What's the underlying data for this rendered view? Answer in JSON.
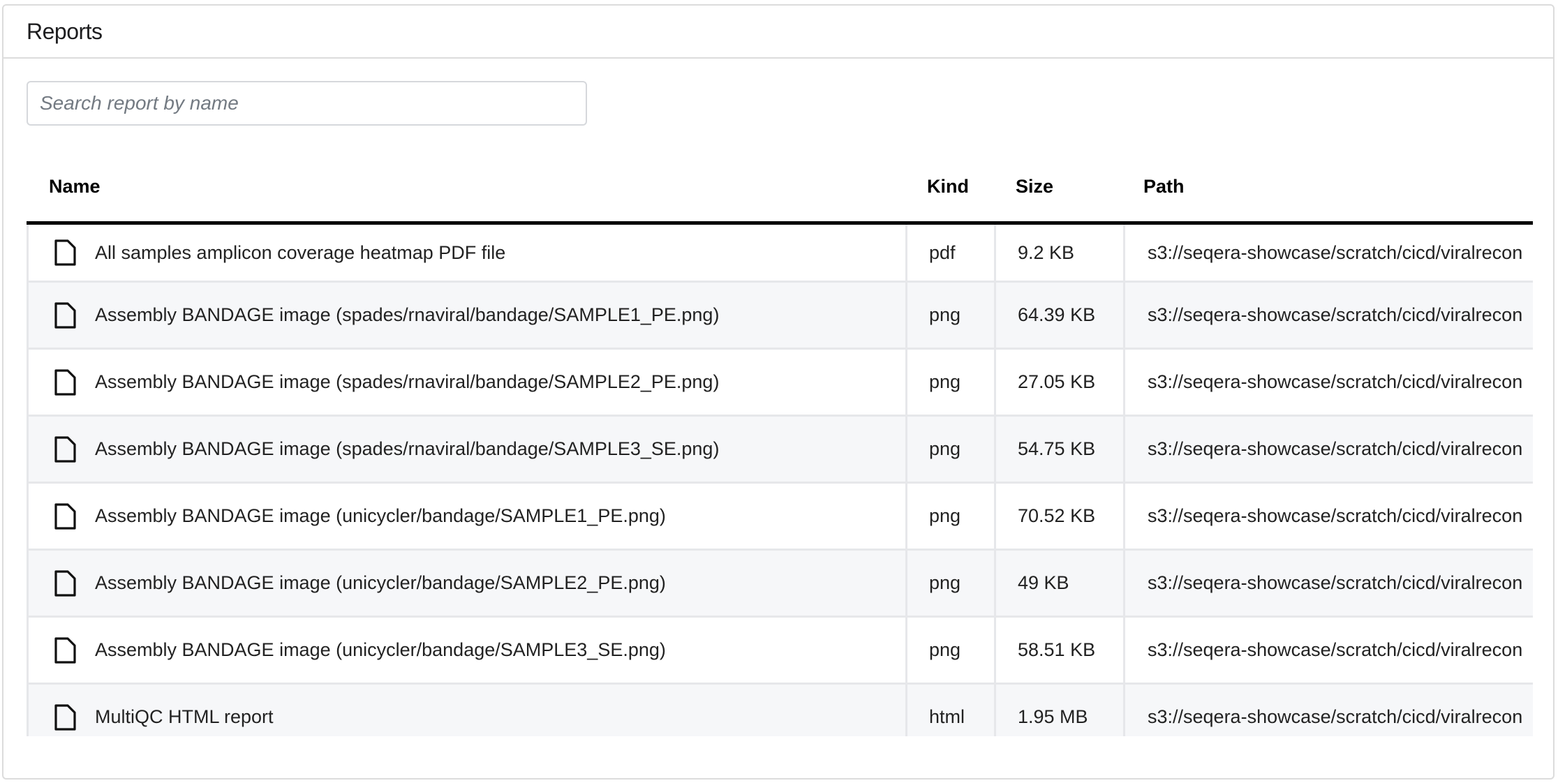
{
  "panel": {
    "title": "Reports"
  },
  "search": {
    "placeholder": "Search report by name",
    "value": ""
  },
  "table": {
    "columns": [
      "Name",
      "Kind",
      "Size",
      "Path"
    ],
    "rows": [
      {
        "icon": "file-icon",
        "name": "All samples amplicon coverage heatmap PDF file",
        "kind": "pdf",
        "size": "9.2 KB",
        "path": "s3://seqera-showcase/scratch/cicd/viralrecon"
      },
      {
        "icon": "file-icon",
        "name": "Assembly BANDAGE image (spades/rnaviral/bandage/SAMPLE1_PE.png)",
        "kind": "png",
        "size": "64.39 KB",
        "path": "s3://seqera-showcase/scratch/cicd/viralrecon"
      },
      {
        "icon": "file-icon",
        "name": "Assembly BANDAGE image (spades/rnaviral/bandage/SAMPLE2_PE.png)",
        "kind": "png",
        "size": "27.05 KB",
        "path": "s3://seqera-showcase/scratch/cicd/viralrecon"
      },
      {
        "icon": "file-icon",
        "name": "Assembly BANDAGE image (spades/rnaviral/bandage/SAMPLE3_SE.png)",
        "kind": "png",
        "size": "54.75 KB",
        "path": "s3://seqera-showcase/scratch/cicd/viralrecon"
      },
      {
        "icon": "file-icon",
        "name": "Assembly BANDAGE image (unicycler/bandage/SAMPLE1_PE.png)",
        "kind": "png",
        "size": "70.52 KB",
        "path": "s3://seqera-showcase/scratch/cicd/viralrecon"
      },
      {
        "icon": "file-icon",
        "name": "Assembly BANDAGE image (unicycler/bandage/SAMPLE2_PE.png)",
        "kind": "png",
        "size": "49 KB",
        "path": "s3://seqera-showcase/scratch/cicd/viralrecon"
      },
      {
        "icon": "file-icon",
        "name": "Assembly BANDAGE image (unicycler/bandage/SAMPLE3_SE.png)",
        "kind": "png",
        "size": "58.51 KB",
        "path": "s3://seqera-showcase/scratch/cicd/viralrecon"
      },
      {
        "icon": "file-icon",
        "name": "MultiQC HTML report",
        "kind": "html",
        "size": "1.95 MB",
        "path": "s3://seqera-showcase/scratch/cicd/viralrecon"
      }
    ]
  }
}
